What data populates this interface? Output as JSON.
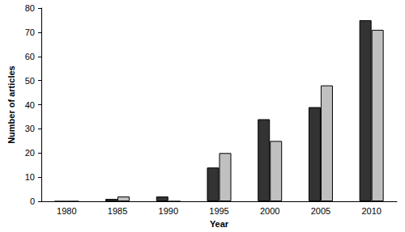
{
  "chart_data": {
    "type": "bar",
    "x_label": "Year",
    "y_label": "Number of articles",
    "categories": [
      "1980",
      "1985",
      "1990",
      "1995",
      "2000",
      "2005",
      "2010"
    ],
    "series": [
      {
        "color": "#333333",
        "values": [
          0,
          1,
          2,
          14,
          34,
          39,
          75
        ]
      },
      {
        "color": "#c0c0c0",
        "values": [
          0,
          2,
          0,
          20,
          25,
          48,
          71
        ]
      }
    ],
    "ylim": [
      0,
      80
    ],
    "yticks": [
      0,
      10,
      20,
      30,
      40,
      50,
      60,
      70,
      80
    ],
    "grid": false
  }
}
